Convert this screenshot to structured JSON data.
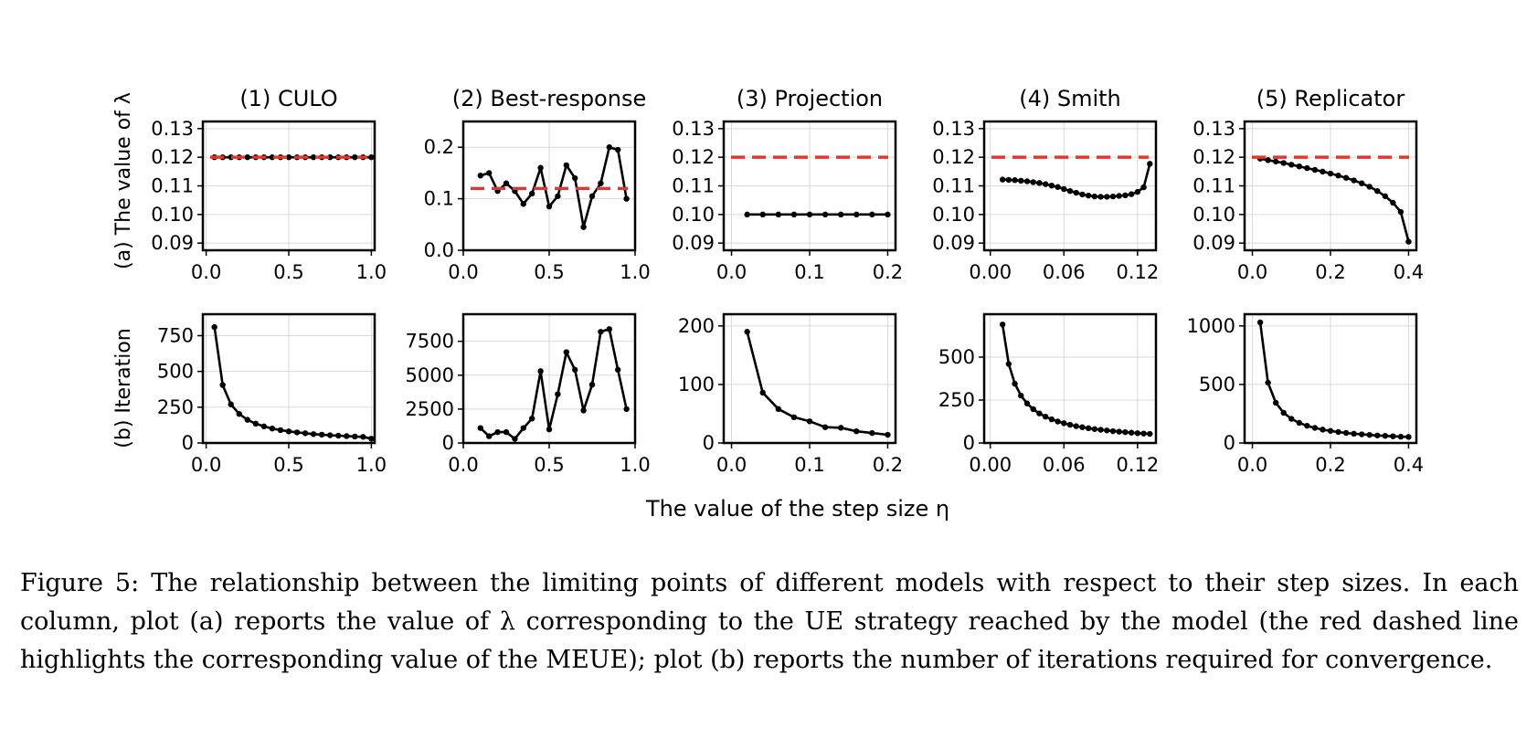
{
  "figure": {
    "row_labels": [
      "(a) The value of λ",
      "(b) Iteration"
    ],
    "shared_xlabel": "The value of the step size η",
    "caption": "Figure 5: The relationship between the limiting points of different models with respect to their step sizes. In each column, plot (a) reports the value of λ corresponding to the UE strategy reached by the model (the red dashed line highlights the corresponding value of the MEUE); plot (b) reports the number of iterations required for convergence."
  },
  "colors": {
    "series": "#000000",
    "reference": "#e8352c",
    "grid": "#d9d9d9"
  },
  "chart_data": [
    {
      "type": "line",
      "title": "(1) CULO",
      "row": "a",
      "col": 0,
      "xlim": [
        -0.02,
        1.02
      ],
      "ylim": [
        0.0875,
        0.1325
      ],
      "xticks": [
        0,
        0.5,
        1.0
      ],
      "xtick_labels": [
        "0.0",
        "0.5",
        "1.0"
      ],
      "yticks": [
        0.09,
        0.1,
        0.11,
        0.12,
        0.13
      ],
      "ytick_labels": [
        "0.09",
        "0.10",
        "0.11",
        "0.12",
        "0.13"
      ],
      "reference_line": 0.12,
      "grid": true,
      "x": [
        0.05,
        0.1,
        0.15,
        0.2,
        0.25,
        0.3,
        0.35,
        0.4,
        0.45,
        0.5,
        0.55,
        0.6,
        0.65,
        0.7,
        0.75,
        0.8,
        0.85,
        0.9,
        0.95,
        1.0
      ],
      "y": [
        0.12,
        0.12,
        0.12,
        0.12,
        0.12,
        0.12,
        0.12,
        0.12,
        0.12,
        0.12,
        0.12,
        0.12,
        0.12,
        0.12,
        0.12,
        0.12,
        0.12,
        0.12,
        0.12,
        0.12
      ]
    },
    {
      "type": "line",
      "title": "(2) Best-response",
      "row": "a",
      "col": 1,
      "xlim": [
        0.0,
        1.0
      ],
      "ylim": [
        0.0,
        0.25
      ],
      "xticks": [
        0,
        0.5,
        1.0
      ],
      "xtick_labels": [
        "0.0",
        "0.5",
        "1.0"
      ],
      "yticks": [
        0.0,
        0.1,
        0.2
      ],
      "ytick_labels": [
        "0.0",
        "0.1",
        "0.2"
      ],
      "reference_line": 0.12,
      "grid": true,
      "x": [
        0.1,
        0.15,
        0.2,
        0.25,
        0.3,
        0.35,
        0.4,
        0.45,
        0.5,
        0.55,
        0.6,
        0.65,
        0.7,
        0.75,
        0.8,
        0.85,
        0.9,
        0.95
      ],
      "y": [
        0.145,
        0.15,
        0.115,
        0.13,
        0.115,
        0.09,
        0.11,
        0.16,
        0.085,
        0.105,
        0.165,
        0.14,
        0.045,
        0.105,
        0.13,
        0.2,
        0.195,
        0.1
      ]
    },
    {
      "type": "line",
      "title": "(3) Projection",
      "row": "a",
      "col": 2,
      "xlim": [
        -0.01,
        0.21
      ],
      "ylim": [
        0.0875,
        0.1325
      ],
      "xticks": [
        0,
        0.1,
        0.2
      ],
      "xtick_labels": [
        "0.0",
        "0.1",
        "0.2"
      ],
      "yticks": [
        0.09,
        0.1,
        0.11,
        0.12,
        0.13
      ],
      "ytick_labels": [
        "0.09",
        "0.10",
        "0.11",
        "0.12",
        "0.13"
      ],
      "reference_line": 0.12,
      "grid": true,
      "x": [
        0.02,
        0.04,
        0.06,
        0.08,
        0.1,
        0.12,
        0.14,
        0.16,
        0.18,
        0.2
      ],
      "y": [
        0.1,
        0.1,
        0.1,
        0.1,
        0.1,
        0.1,
        0.1,
        0.1,
        0.1,
        0.1
      ]
    },
    {
      "type": "line",
      "title": "(4) Smith",
      "row": "a",
      "col": 3,
      "xlim": [
        -0.005,
        0.135
      ],
      "ylim": [
        0.0875,
        0.1325
      ],
      "xticks": [
        0,
        0.06,
        0.12
      ],
      "xtick_labels": [
        "0.00",
        "0.06",
        "0.12"
      ],
      "yticks": [
        0.09,
        0.1,
        0.11,
        0.12,
        0.13
      ],
      "ytick_labels": [
        "0.09",
        "0.10",
        "0.11",
        "0.12",
        "0.13"
      ],
      "reference_line": 0.12,
      "grid": true,
      "x": [
        0.01,
        0.015,
        0.02,
        0.025,
        0.03,
        0.035,
        0.04,
        0.045,
        0.05,
        0.055,
        0.06,
        0.065,
        0.07,
        0.075,
        0.08,
        0.085,
        0.09,
        0.095,
        0.1,
        0.105,
        0.11,
        0.115,
        0.12,
        0.125,
        0.13
      ],
      "y": [
        0.1122,
        0.1121,
        0.112,
        0.1118,
        0.1116,
        0.1113,
        0.111,
        0.1106,
        0.1101,
        0.1096,
        0.1089,
        0.1082,
        0.1076,
        0.107,
        0.1066,
        0.1063,
        0.1062,
        0.1062,
        0.1063,
        0.1065,
        0.1067,
        0.1071,
        0.1079,
        0.1095,
        0.1177
      ]
    },
    {
      "type": "line",
      "title": "(5) Replicator",
      "row": "a",
      "col": 4,
      "xlim": [
        -0.02,
        0.42
      ],
      "ylim": [
        0.0875,
        0.1325
      ],
      "xticks": [
        0,
        0.2,
        0.4
      ],
      "xtick_labels": [
        "0.0",
        "0.2",
        "0.4"
      ],
      "yticks": [
        0.09,
        0.1,
        0.11,
        0.12,
        0.13
      ],
      "ytick_labels": [
        "0.09",
        "0.10",
        "0.11",
        "0.12",
        "0.13"
      ],
      "reference_line": 0.12,
      "grid": true,
      "x": [
        0.02,
        0.04,
        0.06,
        0.08,
        0.1,
        0.12,
        0.14,
        0.16,
        0.18,
        0.2,
        0.22,
        0.24,
        0.26,
        0.28,
        0.3,
        0.32,
        0.34,
        0.36,
        0.38,
        0.4
      ],
      "y": [
        0.1195,
        0.119,
        0.1185,
        0.118,
        0.1174,
        0.1168,
        0.1162,
        0.1156,
        0.115,
        0.1143,
        0.1136,
        0.1128,
        0.1119,
        0.1109,
        0.1097,
        0.1082,
        0.1064,
        0.1041,
        0.1009,
        0.0905
      ]
    },
    {
      "type": "line",
      "row": "b",
      "col": 0,
      "xlim": [
        -0.02,
        1.02
      ],
      "ylim": [
        0,
        900
      ],
      "xticks": [
        0,
        0.5,
        1.0
      ],
      "xtick_labels": [
        "0.0",
        "0.5",
        "1.0"
      ],
      "yticks": [
        0,
        250,
        500,
        750
      ],
      "ytick_labels": [
        "0",
        "250",
        "500",
        "750"
      ],
      "grid": true,
      "x": [
        0.05,
        0.1,
        0.15,
        0.2,
        0.25,
        0.3,
        0.35,
        0.4,
        0.45,
        0.5,
        0.55,
        0.6,
        0.65,
        0.7,
        0.75,
        0.8,
        0.85,
        0.9,
        0.95,
        1.0
      ],
      "y": [
        810,
        405,
        270,
        203,
        162,
        135,
        116,
        101,
        90,
        81,
        74,
        68,
        62,
        58,
        54,
        51,
        48,
        45,
        43,
        30
      ]
    },
    {
      "type": "line",
      "row": "b",
      "col": 1,
      "xlim": [
        0.0,
        1.0
      ],
      "ylim": [
        0,
        9500
      ],
      "xticks": [
        0,
        0.5,
        1.0
      ],
      "xtick_labels": [
        "0.0",
        "0.5",
        "1.0"
      ],
      "yticks": [
        0,
        2500,
        5000,
        7500
      ],
      "ytick_labels": [
        "0",
        "2500",
        "5000",
        "7500"
      ],
      "grid": true,
      "x": [
        0.1,
        0.15,
        0.2,
        0.25,
        0.3,
        0.35,
        0.4,
        0.45,
        0.5,
        0.55,
        0.6,
        0.65,
        0.7,
        0.75,
        0.8,
        0.85,
        0.9,
        0.95
      ],
      "y": [
        1100,
        500,
        800,
        800,
        300,
        1100,
        1800,
        5300,
        1000,
        3600,
        6700,
        5400,
        2400,
        4300,
        8200,
        8400,
        5400,
        2500
      ]
    },
    {
      "type": "line",
      "row": "b",
      "col": 2,
      "xlim": [
        -0.01,
        0.21
      ],
      "ylim": [
        0,
        220
      ],
      "xticks": [
        0,
        0.1,
        0.2
      ],
      "xtick_labels": [
        "0.0",
        "0.1",
        "0.2"
      ],
      "yticks": [
        0,
        100,
        200
      ],
      "ytick_labels": [
        "0",
        "100",
        "200"
      ],
      "grid": true,
      "x": [
        0.02,
        0.04,
        0.06,
        0.08,
        0.1,
        0.12,
        0.14,
        0.16,
        0.18,
        0.2
      ],
      "y": [
        190,
        86,
        58,
        44,
        37,
        27,
        26,
        20,
        17,
        14
      ]
    },
    {
      "type": "line",
      "row": "b",
      "col": 3,
      "xlim": [
        -0.005,
        0.135
      ],
      "ylim": [
        0,
        750
      ],
      "xticks": [
        0,
        0.06,
        0.12
      ],
      "xtick_labels": [
        "0.00",
        "0.06",
        "0.12"
      ],
      "yticks": [
        0,
        250,
        500
      ],
      "ytick_labels": [
        "0",
        "250",
        "500"
      ],
      "grid": true,
      "x": [
        0.01,
        0.015,
        0.02,
        0.025,
        0.03,
        0.035,
        0.04,
        0.045,
        0.05,
        0.055,
        0.06,
        0.065,
        0.07,
        0.075,
        0.08,
        0.085,
        0.09,
        0.095,
        0.1,
        0.105,
        0.11,
        0.115,
        0.12,
        0.125,
        0.13
      ],
      "y": [
        690,
        460,
        345,
        276,
        230,
        197,
        172,
        153,
        138,
        125,
        115,
        106,
        98,
        92,
        86,
        81,
        77,
        73,
        69,
        66,
        63,
        60,
        57,
        55,
        53
      ]
    },
    {
      "type": "line",
      "row": "b",
      "col": 4,
      "xlim": [
        -0.02,
        0.42
      ],
      "ylim": [
        0,
        1100
      ],
      "xticks": [
        0,
        0.2,
        0.4
      ],
      "xtick_labels": [
        "0.0",
        "0.2",
        "0.4"
      ],
      "yticks": [
        0,
        500,
        1000
      ],
      "ytick_labels": [
        "0",
        "500",
        "1000"
      ],
      "grid": true,
      "x": [
        0.02,
        0.04,
        0.06,
        0.08,
        0.1,
        0.12,
        0.14,
        0.16,
        0.18,
        0.2,
        0.22,
        0.24,
        0.26,
        0.28,
        0.3,
        0.32,
        0.34,
        0.36,
        0.38,
        0.4
      ],
      "y": [
        1030,
        515,
        343,
        258,
        206,
        172,
        147,
        129,
        114,
        103,
        94,
        86,
        79,
        74,
        69,
        64,
        61,
        57,
        54,
        52
      ]
    }
  ]
}
